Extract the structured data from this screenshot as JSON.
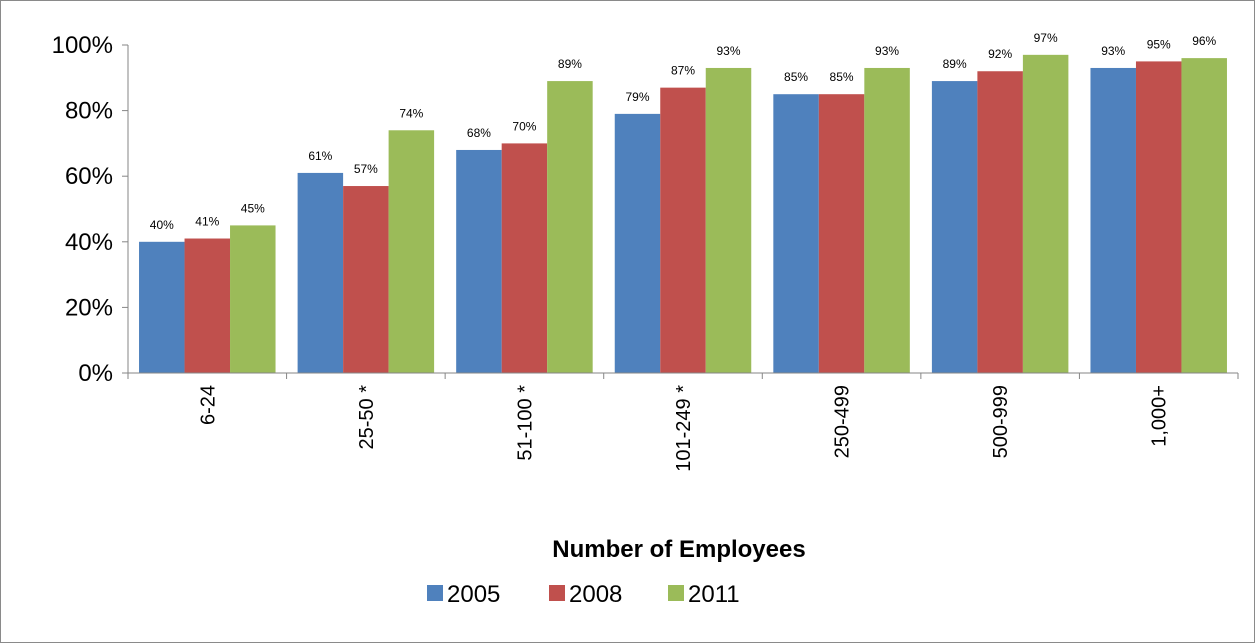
{
  "chart_data": {
    "type": "bar",
    "title": "",
    "xlabel": "Number of Employees",
    "ylabel": "",
    "ylim": [
      0,
      100
    ],
    "yticks": [
      0,
      20,
      40,
      60,
      80,
      100
    ],
    "ytick_labels": [
      "0%",
      "20%",
      "40%",
      "60%",
      "80%",
      "100%"
    ],
    "categories": [
      "6-24",
      "25-50 *",
      "51-100 *",
      "101-249 *",
      "250-499",
      "500-999",
      "1,000+"
    ],
    "series": [
      {
        "name": "2005",
        "color": "#4F81BD",
        "values": [
          40,
          61,
          68,
          79,
          85,
          89,
          93
        ],
        "labels": [
          "40%",
          "61%",
          "68%",
          "79%",
          "85%",
          "89%",
          "93%"
        ]
      },
      {
        "name": "2008",
        "color": "#C0504D",
        "values": [
          41,
          57,
          70,
          87,
          85,
          92,
          95
        ],
        "labels": [
          "41%",
          "57%",
          "70%",
          "87%",
          "85%",
          "92%",
          "95%"
        ]
      },
      {
        "name": "2011",
        "color": "#9BBB59",
        "values": [
          45,
          74,
          89,
          93,
          93,
          97,
          96
        ],
        "labels": [
          "45%",
          "74%",
          "89%",
          "93%",
          "93%",
          "97%",
          "96%"
        ]
      }
    ],
    "grid": false,
    "legend_position": "bottom"
  }
}
